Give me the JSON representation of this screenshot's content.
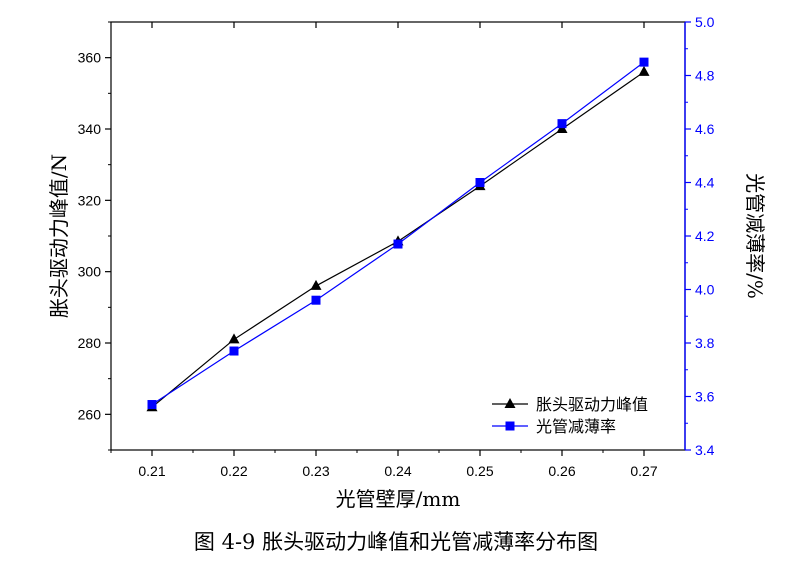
{
  "caption": "图 4-9  胀头驱动力峰值和光管减薄率分布图",
  "chart_data": {
    "type": "line",
    "title": "",
    "xlabel": "光管壁厚/mm",
    "ylabel": "胀头驱动力峰值/N",
    "y2label": "光管减薄率/%",
    "xlim": [
      0.205,
      0.275
    ],
    "ylim": [
      250,
      370
    ],
    "y2lim": [
      3.4,
      5.0
    ],
    "x_ticks": [
      "0.21",
      "0.22",
      "0.23",
      "0.24",
      "0.25",
      "0.26",
      "0.27"
    ],
    "y_ticks": [
      "260",
      "280",
      "300",
      "320",
      "340",
      "360"
    ],
    "y2_ticks": [
      "3.4",
      "3.6",
      "3.8",
      "4.0",
      "4.2",
      "4.4",
      "4.6",
      "4.8",
      "5.0"
    ],
    "x": [
      0.21,
      0.22,
      0.23,
      0.24,
      0.25,
      0.26,
      0.27
    ],
    "legend_position": "bottom-right",
    "series": [
      {
        "name": "胀头驱动力峰值",
        "axis": "left",
        "marker": "triangle",
        "color": "#000000",
        "values": [
          262,
          281,
          296,
          308.5,
          324,
          340,
          356
        ]
      },
      {
        "name": "光管减薄率",
        "axis": "right",
        "marker": "square",
        "color": "#0000ff",
        "values": [
          3.57,
          3.77,
          3.96,
          4.17,
          4.4,
          4.62,
          4.85
        ]
      }
    ]
  }
}
